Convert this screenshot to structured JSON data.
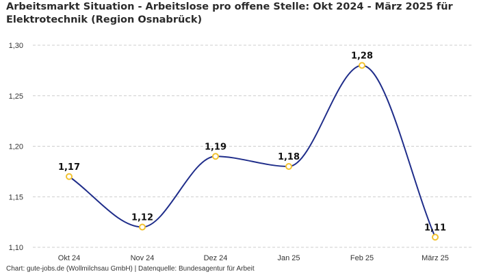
{
  "chart_data": {
    "type": "line",
    "title": "Arbeitsmarkt Situation - Arbeitslose pro offene Stelle: Okt 2024 - März 2025 für Elektrotechnik (Region Osnabrück)",
    "categories": [
      "Okt 24",
      "Nov 24",
      "Dez 24",
      "Jan 25",
      "Feb 25",
      "März 25"
    ],
    "series": [
      {
        "values": [
          1.17,
          1.12,
          1.19,
          1.18,
          1.28,
          1.11
        ]
      }
    ],
    "data_labels": [
      "1,17",
      "1,12",
      "1,19",
      "1,18",
      "1,28",
      "1,11"
    ],
    "yticks": [
      1.1,
      1.15,
      1.2,
      1.25,
      1.3
    ],
    "ytick_labels": [
      "1,10",
      "1,15",
      "1,20",
      "1,25",
      "1,30"
    ],
    "ylim": [
      1.1,
      1.3
    ],
    "grid": true,
    "smooth": true,
    "colors": {
      "line": "#1f2d8a",
      "marker": "#f2c230",
      "grid": "#cccccc"
    },
    "source": "Chart: gute-jobs.de (Wollmilchsau GmbH) | Datenquelle: Bundesagentur für Arbeit"
  }
}
